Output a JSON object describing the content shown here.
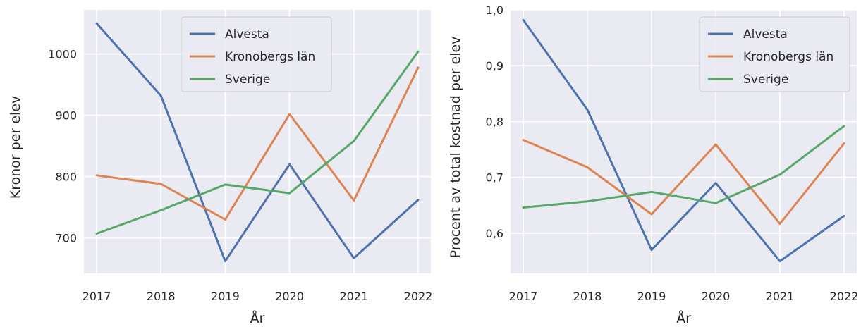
{
  "chart_data": [
    {
      "type": "line",
      "title": "",
      "xlabel": "År",
      "ylabel": "Kronor per elev",
      "x": [
        2017,
        2018,
        2019,
        2020,
        2021,
        2022
      ],
      "x_tick_labels": [
        "2017",
        "2018",
        "2019",
        "2020",
        "2021",
        "2022"
      ],
      "y_ticks": [
        700,
        800,
        900,
        1000
      ],
      "y_tick_labels": [
        "700",
        "800",
        "900",
        "1000"
      ],
      "ylim": [
        642,
        1072
      ],
      "grid": true,
      "legend_position": "top-center",
      "series": [
        {
          "name": "Alvesta",
          "color": "#4C72B0",
          "values": [
            1050,
            932,
            662,
            820,
            667,
            762
          ]
        },
        {
          "name": "Kronobergs län",
          "color": "#DD8452",
          "values": [
            802,
            788,
            730,
            902,
            761,
            978
          ]
        },
        {
          "name": "Sverige",
          "color": "#55A868",
          "values": [
            707,
            745,
            787,
            773,
            858,
            1004
          ]
        }
      ]
    },
    {
      "type": "line",
      "title": "",
      "xlabel": "År",
      "ylabel": "Procent av total kostnad per elev",
      "x": [
        2017,
        2018,
        2019,
        2020,
        2021,
        2022
      ],
      "x_tick_labels": [
        "2017",
        "2018",
        "2019",
        "2020",
        "2021",
        "2022"
      ],
      "y_ticks": [
        0.6,
        0.7,
        0.8,
        0.9,
        1.0
      ],
      "y_tick_labels": [
        "0,6",
        "0,7",
        "0,8",
        "0,9",
        "1,0"
      ],
      "ylim": [
        0.528,
        1.0
      ],
      "grid": true,
      "legend_position": "top-right",
      "series": [
        {
          "name": "Alvesta",
          "color": "#4C72B0",
          "values": [
            0.982,
            0.821,
            0.57,
            0.69,
            0.55,
            0.631
          ]
        },
        {
          "name": "Kronobergs län",
          "color": "#DD8452",
          "values": [
            0.767,
            0.718,
            0.634,
            0.759,
            0.617,
            0.761
          ]
        },
        {
          "name": "Sverige",
          "color": "#55A868",
          "values": [
            0.646,
            0.657,
            0.674,
            0.654,
            0.705,
            0.792
          ]
        }
      ]
    }
  ],
  "style": {
    "plot_background": "#EAEAF2",
    "grid_color": "#FFFFFF",
    "text_color": "#262626",
    "legend_background": "#EAEAF2",
    "legend_border": "#CCCCCC"
  }
}
